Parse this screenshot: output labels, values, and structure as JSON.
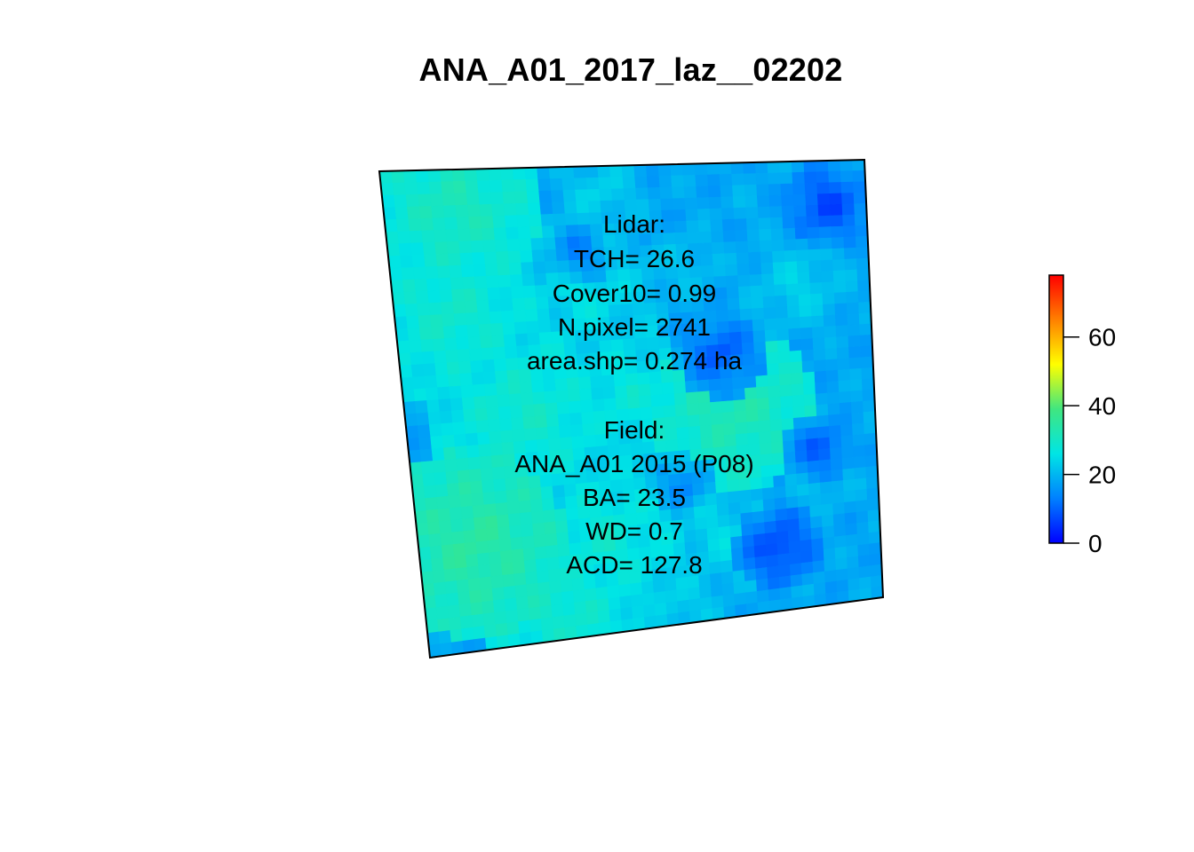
{
  "title": "ANA_A01_2017_laz__02202",
  "lidar": {
    "heading": "Lidar:",
    "tch": "TCH= 26.6",
    "cover10": "Cover10= 0.99",
    "npixel": "N.pixel= 2741",
    "area": "area.shp= 0.274 ha"
  },
  "field": {
    "heading": "Field:",
    "plot": "ANA_A01 2015 (P08)",
    "ba": "BA= 23.5",
    "wd": "WD= 0.7",
    "acd": "ACD= 127.8"
  },
  "legend": {
    "min": 0,
    "max": 78,
    "ticks": [
      {
        "value": 0,
        "label": "0"
      },
      {
        "value": 20,
        "label": "20"
      },
      {
        "value": 40,
        "label": "40"
      },
      {
        "value": 60,
        "label": "60"
      }
    ],
    "colors": [
      "#0000ff",
      "#0080ff",
      "#00e5e5",
      "#40e680",
      "#ffff00",
      "#ff8000",
      "#ff0000"
    ]
  }
}
